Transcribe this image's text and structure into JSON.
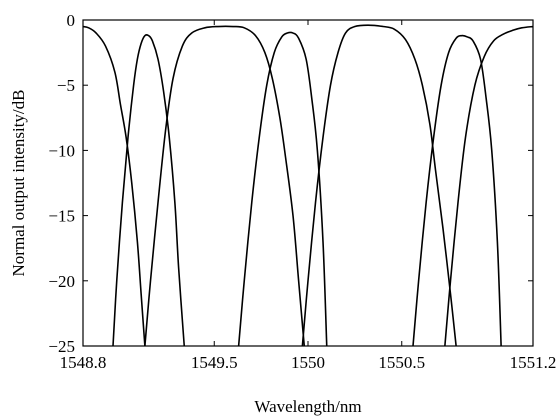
{
  "chart_data": {
    "type": "line",
    "title": "",
    "xlabel": "Wavelength/nm",
    "ylabel": "Normal output intensity/dB",
    "xlim": [
      1548.8,
      1551.2
    ],
    "ylim": [
      -25,
      0
    ],
    "x_ticks": [
      1548.8,
      1549.5,
      1550,
      1550.5,
      1551.2
    ],
    "x_tick_labels": [
      "1548.8",
      "1549.5",
      "1550",
      "1550.5",
      "1551.2"
    ],
    "y_ticks": [
      0,
      -5,
      -10,
      -15,
      -20,
      -25
    ],
    "y_tick_labels": [
      "0",
      "−5",
      "−10",
      "−15",
      "−20",
      "−25"
    ],
    "grid": false,
    "legend": "none",
    "series": [
      {
        "x": [
          1548.8,
          1548.83,
          1548.87,
          1548.92,
          1548.97,
          1549.0,
          1549.03,
          1549.06,
          1549.09,
          1549.11,
          1549.13
        ],
        "y": [
          -0.5,
          -0.6,
          -1.0,
          -2.0,
          -4.0,
          -6.5,
          -9.0,
          -12.5,
          -17.0,
          -21.0,
          -25.0
        ]
      },
      {
        "x": [
          1548.96,
          1548.98,
          1549.01,
          1549.04,
          1549.07,
          1549.09,
          1549.11,
          1549.13,
          1549.15,
          1549.17,
          1549.2,
          1549.23,
          1549.26,
          1549.29,
          1549.31,
          1549.34
        ],
        "y": [
          -25.0,
          -20.0,
          -14.0,
          -9.0,
          -5.0,
          -3.0,
          -1.8,
          -1.2,
          -1.2,
          -1.6,
          -3.0,
          -5.5,
          -9.0,
          -14.0,
          -19.0,
          -25.0
        ]
      },
      {
        "x": [
          1549.13,
          1549.16,
          1549.2,
          1549.24,
          1549.28,
          1549.33,
          1549.38,
          1549.45,
          1549.52,
          1549.6,
          1549.66,
          1549.72,
          1549.77,
          1549.81,
          1549.85,
          1549.88,
          1549.92,
          1549.95,
          1549.98
        ],
        "y": [
          -25.0,
          -20.0,
          -14.0,
          -8.5,
          -4.5,
          -2.0,
          -1.0,
          -0.6,
          -0.5,
          -0.5,
          -0.6,
          -1.2,
          -2.5,
          -4.5,
          -7.5,
          -10.5,
          -15.0,
          -20.0,
          -25.0
        ]
      },
      {
        "x": [
          1549.63,
          1549.66,
          1549.7,
          1549.74,
          1549.78,
          1549.82,
          1549.86,
          1549.89,
          1549.92,
          1549.95,
          1549.99,
          1550.02,
          1550.05,
          1550.08,
          1550.1
        ],
        "y": [
          -25.0,
          -20.0,
          -14.0,
          -9.0,
          -5.0,
          -2.5,
          -1.3,
          -1.0,
          -1.0,
          -1.4,
          -3.0,
          -6.0,
          -10.0,
          -17.0,
          -25.0
        ]
      },
      {
        "x": [
          1549.97,
          1550.0,
          1550.04,
          1550.08,
          1550.12,
          1550.16,
          1550.2,
          1550.25,
          1550.32,
          1550.4,
          1550.46,
          1550.52,
          1550.57,
          1550.61,
          1550.65,
          1550.68,
          1550.72,
          1550.76,
          1550.79
        ],
        "y": [
          -25.0,
          -20.0,
          -14.0,
          -9.0,
          -5.0,
          -2.5,
          -1.0,
          -0.5,
          -0.4,
          -0.5,
          -0.7,
          -1.5,
          -3.0,
          -5.0,
          -8.0,
          -11.5,
          -16.0,
          -21.0,
          -25.0
        ]
      },
      {
        "x": [
          1550.56,
          1550.59,
          1550.63,
          1550.67,
          1550.71,
          1550.75,
          1550.79,
          1550.82,
          1550.85,
          1550.88,
          1550.92,
          1550.95,
          1550.98,
          1551.01,
          1551.03
        ],
        "y": [
          -25.0,
          -20.0,
          -14.0,
          -9.0,
          -5.0,
          -2.5,
          -1.4,
          -1.2,
          -1.3,
          -1.6,
          -3.0,
          -6.0,
          -10.0,
          -17.0,
          -25.0
        ]
      },
      {
        "x": [
          1550.73,
          1550.76,
          1550.8,
          1550.84,
          1550.89,
          1550.94,
          1550.99,
          1551.04,
          1551.09,
          1551.14,
          1551.2
        ],
        "y": [
          -25.0,
          -20.0,
          -14.0,
          -9.0,
          -5.0,
          -2.8,
          -1.6,
          -1.1,
          -0.8,
          -0.6,
          -0.5
        ]
      }
    ]
  }
}
